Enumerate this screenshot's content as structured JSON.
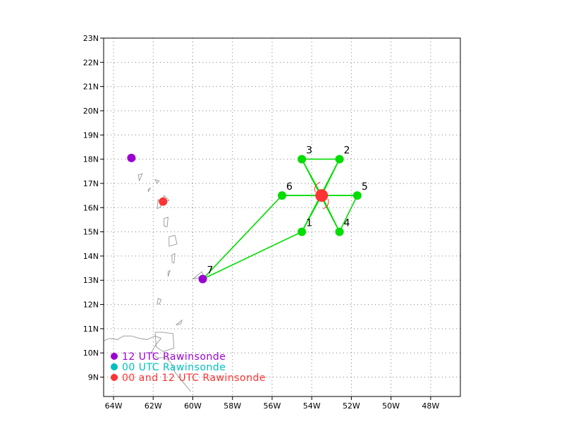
{
  "map": {
    "lon_range": [
      -64.5,
      -46.5
    ],
    "lat_range": [
      8.2,
      23
    ],
    "grid": "dotted",
    "colors": {
      "frame": "#000000",
      "grid": "#808080",
      "coast": "#a0a0a0",
      "track": "#00dd00",
      "green_point": "#00dd00",
      "center": "#ff3333",
      "rawinsonde_12": "#9b00d3",
      "rawinsonde_00": "#00c0c0",
      "rawinsonde_both": "#ff3333"
    },
    "x_ticks": [
      {
        "lon": -64,
        "label": "64W"
      },
      {
        "lon": -62,
        "label": "62W"
      },
      {
        "lon": -60,
        "label": "60W"
      },
      {
        "lon": -58,
        "label": "58W"
      },
      {
        "lon": -56,
        "label": "56W"
      },
      {
        "lon": -54,
        "label": "54W"
      },
      {
        "lon": -52,
        "label": "52W"
      },
      {
        "lon": -50,
        "label": "50W"
      },
      {
        "lon": -48,
        "label": "48W"
      }
    ],
    "y_ticks": [
      {
        "lat": 9,
        "label": "9N"
      },
      {
        "lat": 10,
        "label": "10N"
      },
      {
        "lat": 11,
        "label": "11N"
      },
      {
        "lat": 12,
        "label": "12N"
      },
      {
        "lat": 13,
        "label": "13N"
      },
      {
        "lat": 14,
        "label": "14N"
      },
      {
        "lat": 15,
        "label": "15N"
      },
      {
        "lat": 16,
        "label": "16N"
      },
      {
        "lat": 17,
        "label": "17N"
      },
      {
        "lat": 18,
        "label": "18N"
      },
      {
        "lat": 19,
        "label": "19N"
      },
      {
        "lat": 20,
        "label": "20N"
      },
      {
        "lat": 21,
        "label": "21N"
      },
      {
        "lat": 22,
        "label": "22N"
      },
      {
        "lat": 23,
        "label": "23N"
      }
    ],
    "center": {
      "lon": -53.5,
      "lat": 16.5
    },
    "pattern_points": [
      {
        "label": "1",
        "lon": -54.5,
        "lat": 15.0,
        "type": "green"
      },
      {
        "label": "2",
        "lon": -52.6,
        "lat": 18.0,
        "type": "green"
      },
      {
        "label": "3",
        "lon": -54.5,
        "lat": 18.0,
        "type": "green"
      },
      {
        "label": "4",
        "lon": -52.6,
        "lat": 15.0,
        "type": "green"
      },
      {
        "label": "5",
        "lon": -51.7,
        "lat": 16.5,
        "type": "green"
      },
      {
        "label": "6",
        "lon": -55.5,
        "lat": 16.5,
        "type": "green"
      },
      {
        "label": "7",
        "lon": -59.5,
        "lat": 13.05,
        "type": "rawinsonde_12"
      }
    ],
    "track_order": [
      "7",
      "6",
      "5",
      "4",
      "3",
      "2",
      "1",
      "7"
    ],
    "rawinsonde_stations": [
      {
        "lon": -63.1,
        "lat": 18.05,
        "type": "rawinsonde_12"
      },
      {
        "lon": -61.5,
        "lat": 16.25,
        "type": "rawinsonde_both"
      }
    ]
  },
  "legend": [
    {
      "label": "12 UTC Rawinsonde",
      "color": "#9b00d3"
    },
    {
      "label": "00 UTC Rawinsonde",
      "color": "#00c0c0"
    },
    {
      "label": "00 and 12 UTC Rawinsonde",
      "color": "#ff3333"
    }
  ]
}
